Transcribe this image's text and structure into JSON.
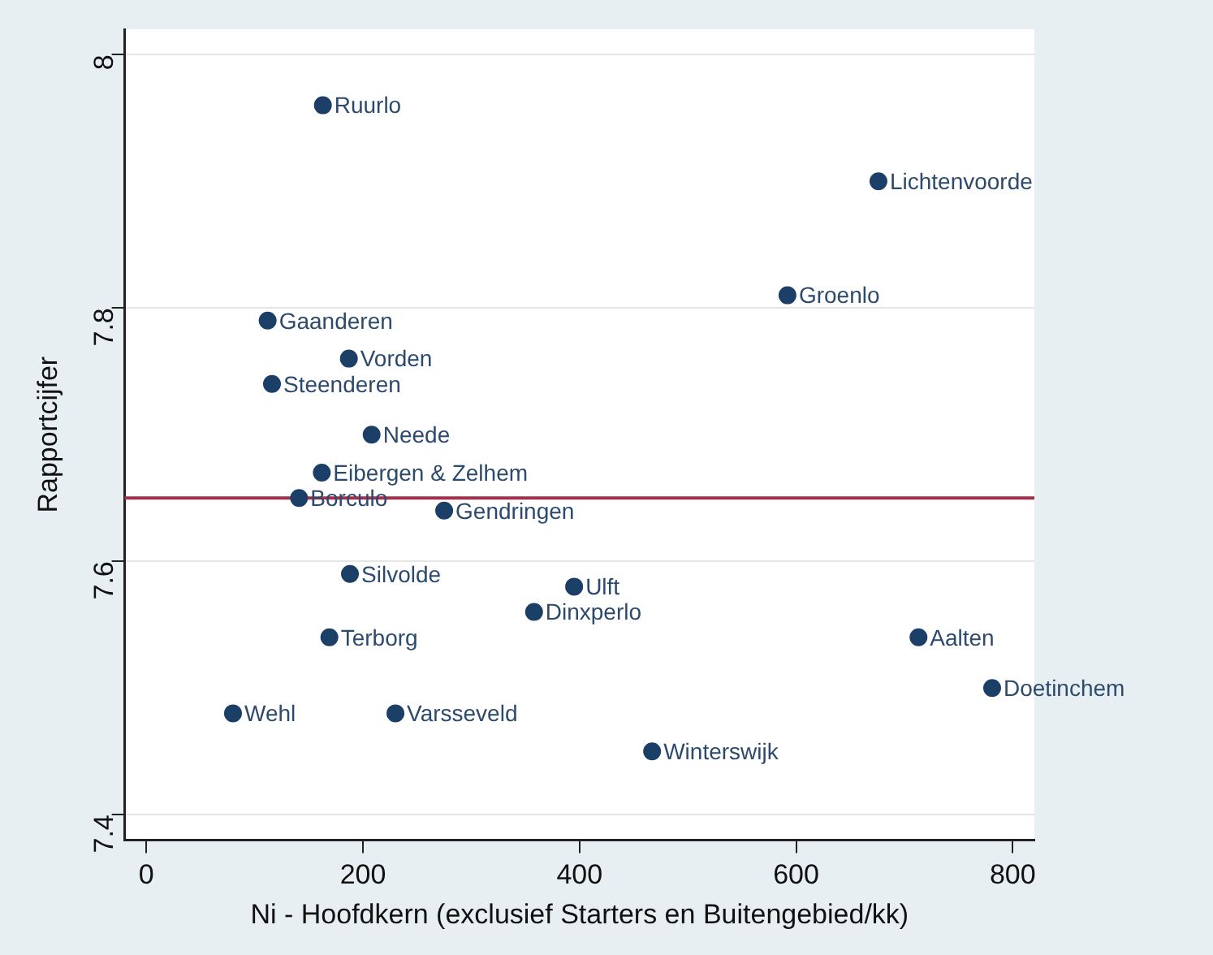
{
  "chart_data": {
    "type": "scatter",
    "xlabel": "Ni - Hoofdkern (exclusief Starters en Buitengebied/kk)",
    "ylabel": "Rapportcijfer",
    "x": [
      163,
      112,
      187,
      116,
      208,
      162,
      141,
      275,
      188,
      395,
      358,
      169,
      80,
      230,
      467,
      676,
      592,
      713,
      781
    ],
    "series": [
      {
        "color": "#1b3f66",
        "values": [
          7.96,
          7.79,
          7.76,
          7.74,
          7.7,
          7.67,
          7.65,
          7.64,
          7.59,
          7.58,
          7.56,
          7.54,
          7.48,
          7.48,
          7.45,
          7.9,
          7.81,
          7.54,
          7.5
        ]
      }
    ],
    "xlim": [
      -20,
      820
    ],
    "xticks": [
      0,
      200,
      400,
      600,
      800
    ],
    "ylim": [
      7.38,
      8.02
    ],
    "yticks": [
      7.4,
      7.6,
      7.8,
      8
    ],
    "grid": "y",
    "legend": false,
    "marker": "circle",
    "ref_lines": [
      {
        "axis": "y",
        "value": 7.65,
        "color": "#a3304c"
      }
    ],
    "annotations": [
      {
        "text": "Ruurlo",
        "x": 163,
        "y": 7.96
      },
      {
        "text": "Gaanderen",
        "x": 112,
        "y": 7.79
      },
      {
        "text": "Vorden",
        "x": 187,
        "y": 7.76
      },
      {
        "text": "Steenderen",
        "x": 116,
        "y": 7.74
      },
      {
        "text": "Neede",
        "x": 208,
        "y": 7.7
      },
      {
        "text": "Eibergen & Zelhem",
        "x": 162,
        "y": 7.67
      },
      {
        "text": "Borculo",
        "x": 141,
        "y": 7.65
      },
      {
        "text": "Gendringen",
        "x": 275,
        "y": 7.64
      },
      {
        "text": "Silvolde",
        "x": 188,
        "y": 7.59
      },
      {
        "text": "Ulft",
        "x": 395,
        "y": 7.58
      },
      {
        "text": "Dinxperlo",
        "x": 358,
        "y": 7.56
      },
      {
        "text": "Terborg",
        "x": 169,
        "y": 7.54
      },
      {
        "text": "Wehl",
        "x": 80,
        "y": 7.48
      },
      {
        "text": "Varsseveld",
        "x": 230,
        "y": 7.48
      },
      {
        "text": "Winterswijk",
        "x": 467,
        "y": 7.45
      },
      {
        "text": "Lichtenvoorde",
        "x": 676,
        "y": 7.9
      },
      {
        "text": "Groenlo",
        "x": 592,
        "y": 7.81
      },
      {
        "text": "Aalten",
        "x": 713,
        "y": 7.54
      },
      {
        "text": "Doetinchem",
        "x": 781,
        "y": 7.5
      }
    ]
  }
}
